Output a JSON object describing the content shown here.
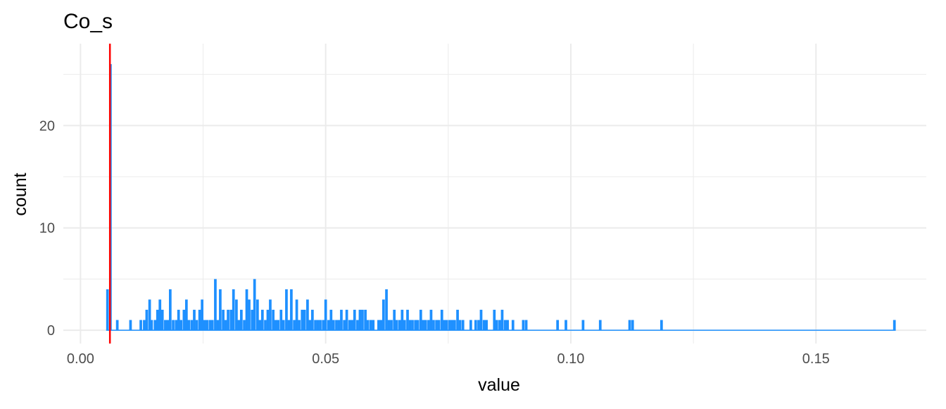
{
  "chart_data": {
    "type": "bar",
    "title": "Co_s",
    "xlabel": "value",
    "ylabel": "count",
    "xlim": [
      -0.0035,
      0.1725
    ],
    "ylim": [
      -1.3,
      28
    ],
    "bin_width": 0.000535,
    "x_ticks": [
      0.0,
      0.05,
      0.1,
      0.15
    ],
    "x_tick_labels": [
      "0.00",
      "0.05",
      "0.10",
      "0.15"
    ],
    "y_ticks": [
      0,
      10,
      20
    ],
    "y_tick_labels": [
      "0",
      "10",
      "20"
    ],
    "grid": true,
    "bar_color": "#1E90FF",
    "reference_line": {
      "x": 0.006,
      "color": "#FF0000"
    },
    "bins": [
      {
        "x": 0.0055,
        "count": 4
      },
      {
        "x": 0.0061,
        "count": 26
      },
      {
        "x": 0.0075,
        "count": 1
      },
      {
        "x": 0.0102,
        "count": 1
      },
      {
        "x": 0.0123,
        "count": 1
      },
      {
        "x": 0.013,
        "count": 1
      },
      {
        "x": 0.0135,
        "count": 2
      },
      {
        "x": 0.0141,
        "count": 3
      },
      {
        "x": 0.0145,
        "count": 1
      },
      {
        "x": 0.0152,
        "count": 1
      },
      {
        "x": 0.0157,
        "count": 2
      },
      {
        "x": 0.0162,
        "count": 3
      },
      {
        "x": 0.0167,
        "count": 2
      },
      {
        "x": 0.0173,
        "count": 1
      },
      {
        "x": 0.0178,
        "count": 1
      },
      {
        "x": 0.0183,
        "count": 4
      },
      {
        "x": 0.0189,
        "count": 1
      },
      {
        "x": 0.0195,
        "count": 1
      },
      {
        "x": 0.02,
        "count": 2
      },
      {
        "x": 0.0205,
        "count": 1
      },
      {
        "x": 0.0211,
        "count": 2
      },
      {
        "x": 0.0216,
        "count": 3
      },
      {
        "x": 0.0221,
        "count": 1
      },
      {
        "x": 0.0227,
        "count": 1
      },
      {
        "x": 0.0232,
        "count": 2
      },
      {
        "x": 0.0237,
        "count": 1
      },
      {
        "x": 0.0243,
        "count": 2
      },
      {
        "x": 0.0248,
        "count": 3
      },
      {
        "x": 0.0253,
        "count": 1
      },
      {
        "x": 0.0258,
        "count": 1
      },
      {
        "x": 0.0264,
        "count": 1
      },
      {
        "x": 0.0269,
        "count": 1
      },
      {
        "x": 0.0275,
        "count": 5
      },
      {
        "x": 0.028,
        "count": 1
      },
      {
        "x": 0.0285,
        "count": 4
      },
      {
        "x": 0.0291,
        "count": 2
      },
      {
        "x": 0.0296,
        "count": 1
      },
      {
        "x": 0.0301,
        "count": 2
      },
      {
        "x": 0.0307,
        "count": 2
      },
      {
        "x": 0.0312,
        "count": 4
      },
      {
        "x": 0.0318,
        "count": 3
      },
      {
        "x": 0.0323,
        "count": 1
      },
      {
        "x": 0.0328,
        "count": 2
      },
      {
        "x": 0.0334,
        "count": 1
      },
      {
        "x": 0.0339,
        "count": 4
      },
      {
        "x": 0.0344,
        "count": 3
      },
      {
        "x": 0.035,
        "count": 2
      },
      {
        "x": 0.0355,
        "count": 5
      },
      {
        "x": 0.0361,
        "count": 3
      },
      {
        "x": 0.0366,
        "count": 1
      },
      {
        "x": 0.0371,
        "count": 2
      },
      {
        "x": 0.0377,
        "count": 1
      },
      {
        "x": 0.0382,
        "count": 2
      },
      {
        "x": 0.0387,
        "count": 3
      },
      {
        "x": 0.0393,
        "count": 2
      },
      {
        "x": 0.0398,
        "count": 1
      },
      {
        "x": 0.0403,
        "count": 1
      },
      {
        "x": 0.0409,
        "count": 2
      },
      {
        "x": 0.0414,
        "count": 1
      },
      {
        "x": 0.042,
        "count": 4
      },
      {
        "x": 0.0425,
        "count": 1
      },
      {
        "x": 0.043,
        "count": 4
      },
      {
        "x": 0.0436,
        "count": 1
      },
      {
        "x": 0.0441,
        "count": 3
      },
      {
        "x": 0.0446,
        "count": 1
      },
      {
        "x": 0.0452,
        "count": 2
      },
      {
        "x": 0.0457,
        "count": 2
      },
      {
        "x": 0.0463,
        "count": 3
      },
      {
        "x": 0.0468,
        "count": 1
      },
      {
        "x": 0.0473,
        "count": 2
      },
      {
        "x": 0.0479,
        "count": 1
      },
      {
        "x": 0.0484,
        "count": 1
      },
      {
        "x": 0.0489,
        "count": 1
      },
      {
        "x": 0.0495,
        "count": 1
      },
      {
        "x": 0.05,
        "count": 3
      },
      {
        "x": 0.0506,
        "count": 1
      },
      {
        "x": 0.0511,
        "count": 2
      },
      {
        "x": 0.0516,
        "count": 1
      },
      {
        "x": 0.0522,
        "count": 1
      },
      {
        "x": 0.0527,
        "count": 1
      },
      {
        "x": 0.0532,
        "count": 2
      },
      {
        "x": 0.0538,
        "count": 1
      },
      {
        "x": 0.0543,
        "count": 2
      },
      {
        "x": 0.0549,
        "count": 1
      },
      {
        "x": 0.0554,
        "count": 1
      },
      {
        "x": 0.0559,
        "count": 2
      },
      {
        "x": 0.0565,
        "count": 1
      },
      {
        "x": 0.057,
        "count": 2
      },
      {
        "x": 0.0575,
        "count": 2
      },
      {
        "x": 0.0581,
        "count": 2
      },
      {
        "x": 0.0586,
        "count": 1
      },
      {
        "x": 0.0592,
        "count": 1
      },
      {
        "x": 0.0597,
        "count": 1
      },
      {
        "x": 0.0602,
        "count": 0
      },
      {
        "x": 0.0608,
        "count": 1
      },
      {
        "x": 0.0613,
        "count": 1
      },
      {
        "x": 0.0618,
        "count": 3
      },
      {
        "x": 0.0624,
        "count": 4
      },
      {
        "x": 0.0629,
        "count": 1
      },
      {
        "x": 0.0634,
        "count": 1
      },
      {
        "x": 0.064,
        "count": 2
      },
      {
        "x": 0.0645,
        "count": 1
      },
      {
        "x": 0.0651,
        "count": 1
      },
      {
        "x": 0.0656,
        "count": 2
      },
      {
        "x": 0.0661,
        "count": 1
      },
      {
        "x": 0.0667,
        "count": 2
      },
      {
        "x": 0.0672,
        "count": 1
      },
      {
        "x": 0.0677,
        "count": 1
      },
      {
        "x": 0.0683,
        "count": 1
      },
      {
        "x": 0.0688,
        "count": 1
      },
      {
        "x": 0.0694,
        "count": 2
      },
      {
        "x": 0.0699,
        "count": 1
      },
      {
        "x": 0.0704,
        "count": 1
      },
      {
        "x": 0.071,
        "count": 1
      },
      {
        "x": 0.0715,
        "count": 2
      },
      {
        "x": 0.072,
        "count": 1
      },
      {
        "x": 0.0726,
        "count": 1
      },
      {
        "x": 0.0731,
        "count": 1
      },
      {
        "x": 0.0737,
        "count": 2
      },
      {
        "x": 0.0742,
        "count": 1
      },
      {
        "x": 0.0747,
        "count": 1
      },
      {
        "x": 0.0753,
        "count": 1
      },
      {
        "x": 0.0758,
        "count": 1
      },
      {
        "x": 0.0763,
        "count": 1
      },
      {
        "x": 0.0769,
        "count": 2
      },
      {
        "x": 0.0774,
        "count": 1
      },
      {
        "x": 0.078,
        "count": 1
      },
      {
        "x": 0.0785,
        "count": 0
      },
      {
        "x": 0.079,
        "count": 0
      },
      {
        "x": 0.0796,
        "count": 1
      },
      {
        "x": 0.0801,
        "count": 0
      },
      {
        "x": 0.0806,
        "count": 1
      },
      {
        "x": 0.0812,
        "count": 1
      },
      {
        "x": 0.0817,
        "count": 2
      },
      {
        "x": 0.0823,
        "count": 1
      },
      {
        "x": 0.0828,
        "count": 1
      },
      {
        "x": 0.0833,
        "count": 0
      },
      {
        "x": 0.0839,
        "count": 0
      },
      {
        "x": 0.0844,
        "count": 2
      },
      {
        "x": 0.0849,
        "count": 1
      },
      {
        "x": 0.0855,
        "count": 1
      },
      {
        "x": 0.086,
        "count": 2
      },
      {
        "x": 0.0866,
        "count": 1
      },
      {
        "x": 0.0871,
        "count": 1
      },
      {
        "x": 0.0876,
        "count": 0
      },
      {
        "x": 0.0882,
        "count": 1
      },
      {
        "x": 0.0887,
        "count": 0
      },
      {
        "x": 0.0892,
        "count": 0
      },
      {
        "x": 0.0898,
        "count": 0
      },
      {
        "x": 0.0903,
        "count": 1
      },
      {
        "x": 0.0909,
        "count": 1
      },
      {
        "x": 0.0973,
        "count": 1
      },
      {
        "x": 0.099,
        "count": 1
      },
      {
        "x": 0.1025,
        "count": 1
      },
      {
        "x": 0.106,
        "count": 1
      },
      {
        "x": 0.112,
        "count": 1
      },
      {
        "x": 0.1126,
        "count": 1
      },
      {
        "x": 0.1185,
        "count": 1
      },
      {
        "x": 0.166,
        "count": 1
      }
    ]
  }
}
